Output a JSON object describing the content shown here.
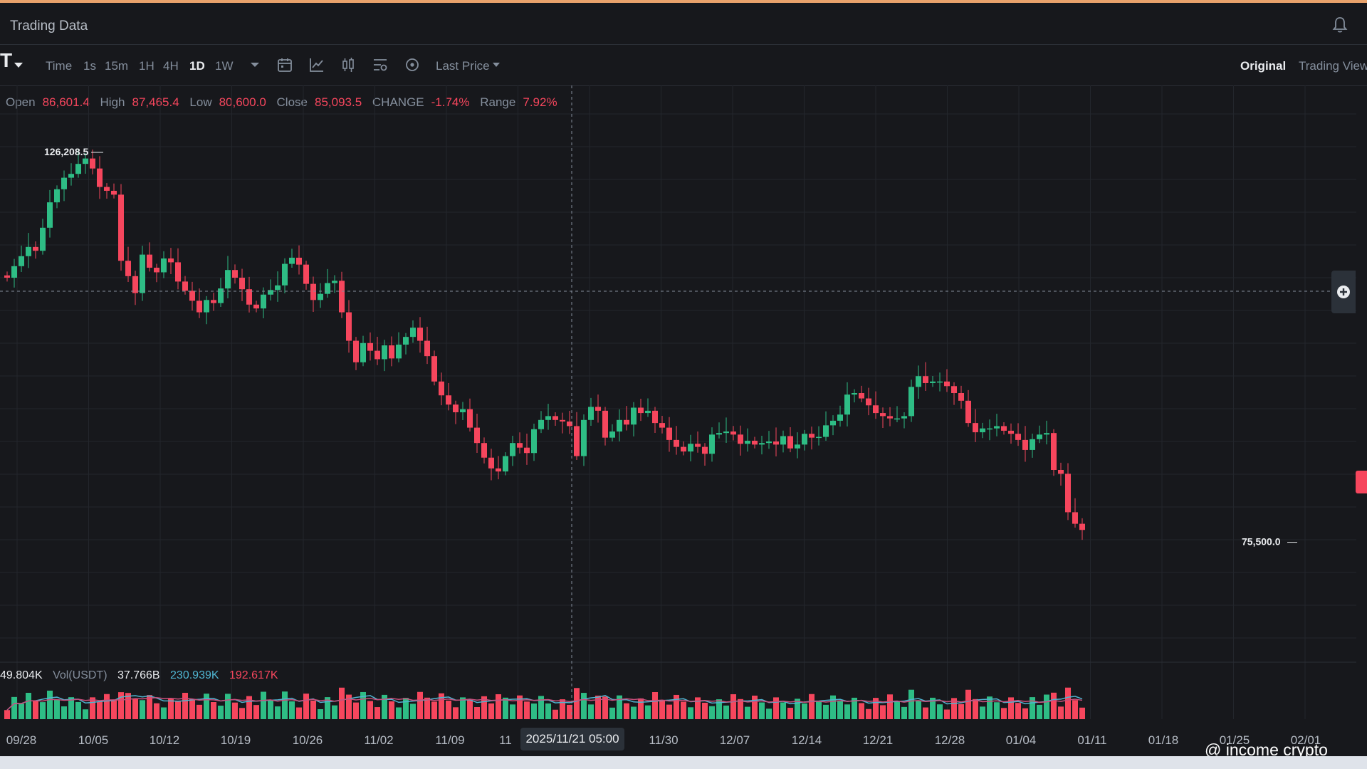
{
  "app": {
    "title": "Trading Data"
  },
  "toolbar": {
    "symbol_fragment": "T",
    "timeframes": [
      {
        "label": "Time",
        "active": false
      },
      {
        "label": "1s",
        "active": false
      },
      {
        "label": "15m",
        "active": false
      },
      {
        "label": "1H",
        "active": false
      },
      {
        "label": "4H",
        "active": false
      },
      {
        "label": "1D",
        "active": true
      },
      {
        "label": "1W",
        "active": false
      }
    ],
    "price_type": "Last Price",
    "views": {
      "original": "Original",
      "trading_view": "Trading View"
    }
  },
  "ohlc": {
    "open_label": "Open",
    "open": "86,601.4",
    "high_label": "High",
    "high": "87,465.4",
    "low_label": "Low",
    "low": "80,600.0",
    "close_label": "Close",
    "close": "85,093.5",
    "change_label": "CHANGE",
    "change": "-1.74%",
    "range_label": "Range",
    "range": "7.92%"
  },
  "volume": {
    "first_value": "49.804K",
    "label": "Vol(USDT)",
    "usdt": "37.766B",
    "ma1": "230.939K",
    "ma2": "192.617K"
  },
  "crosshair_date": "2025/11/21 05:00",
  "watermark": "@ income crypto",
  "colors": {
    "up": "#2ebd85",
    "down": "#f6465d",
    "background": "#17181c",
    "grid": "#23262c"
  },
  "chart_data": {
    "type": "candlestick",
    "x_labels": [
      "09/28",
      "10/05",
      "10/12",
      "10/19",
      "10/26",
      "11/02",
      "11/09",
      "11",
      "11/30",
      "12/07",
      "12/14",
      "12/21",
      "12/28",
      "01/04",
      "01/11",
      "01/18",
      "01/25",
      "02/01"
    ],
    "annotations": [
      {
        "label": "126,208.5",
        "value": 126208.5
      },
      {
        "label": "75,500.0",
        "value": 75500.0
      }
    ],
    "ylim": [
      60000,
      135000
    ],
    "series_close": [
      110000,
      111500,
      112800,
      114000,
      113500,
      116500,
      119800,
      121500,
      123000,
      123500,
      124800,
      125500,
      124200,
      121800,
      121300,
      120800,
      112200,
      110200,
      108000,
      113000,
      111300,
      110700,
      112500,
      112000,
      109500,
      108300,
      107000,
      105500,
      107100,
      106700,
      108600,
      111000,
      110000,
      108500,
      106500,
      106000,
      107800,
      108400,
      109000,
      111800,
      112600,
      111700,
      109200,
      107100,
      107900,
      109300,
      109600,
      105500,
      101800,
      99000,
      101500,
      100500,
      99400,
      101200,
      99500,
      101300,
      102300,
      103500,
      101800,
      99800,
      96500,
      94700,
      93500,
      92500,
      92900,
      90500,
      88500,
      86600,
      85200,
      84800,
      86800,
      88500,
      87900,
      87200,
      90300,
      91500,
      92000,
      91500,
      91300,
      90700,
      86800,
      91500,
      93200,
      92700,
      89200,
      90000,
      91500,
      90900,
      93100,
      92400,
      92700,
      91100,
      90500,
      88900,
      88000,
      87400,
      88400,
      88000,
      87100,
      89600,
      89800,
      90000,
      89600,
      88400,
      88800,
      88300,
      88500,
      88700,
      88300,
      89400,
      87800,
      88300,
      89700,
      89200,
      89300,
      90800,
      91400,
      92200,
      94800,
      95000,
      94300,
      93400,
      92400,
      92000,
      91700,
      91700,
      92000,
      95800,
      97200,
      96300,
      96500,
      96500,
      95900,
      95000,
      94000,
      91100,
      89900,
      90400,
      90400,
      90700,
      90100,
      89700,
      88900,
      87600,
      89000,
      89600,
      89800,
      85000,
      84500,
      79500,
      78000,
      77200
    ]
  }
}
